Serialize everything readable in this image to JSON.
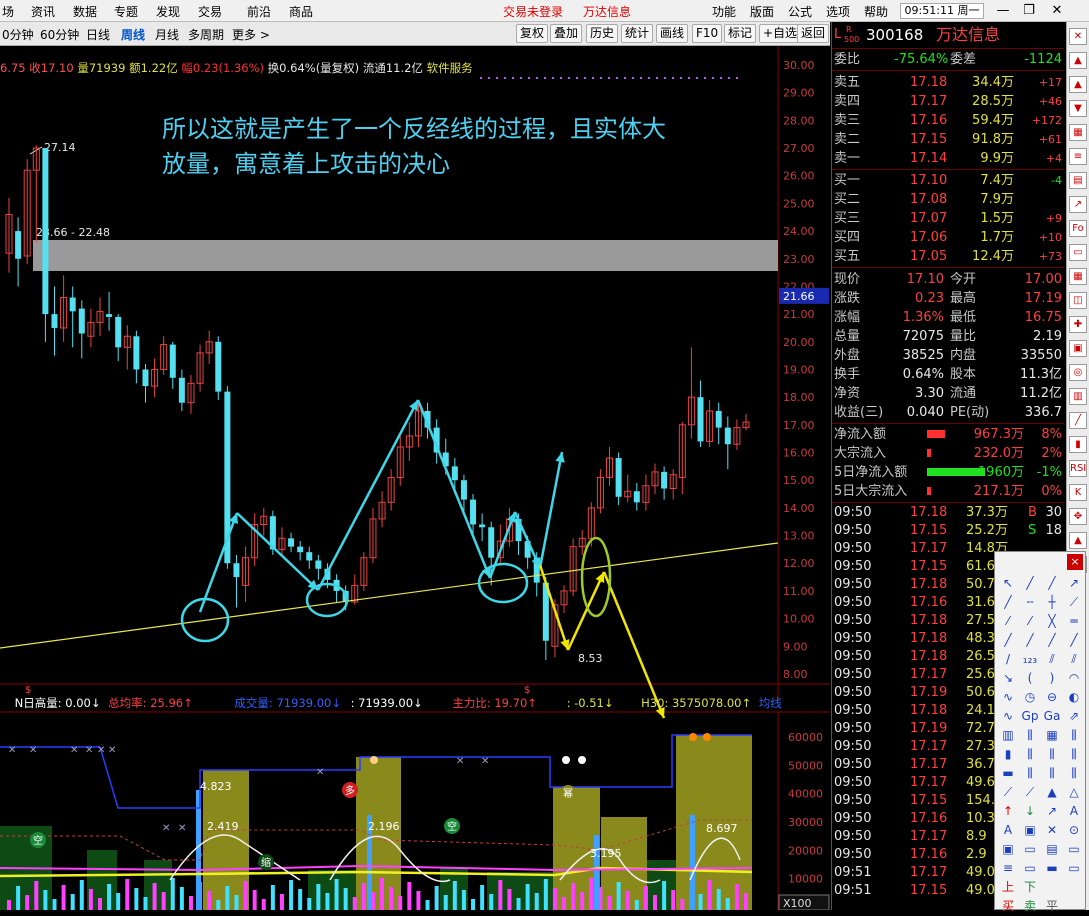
{
  "menu": {
    "left": [
      "场",
      "资讯",
      "数据",
      "专题",
      "发现",
      "交易",
      "前沿",
      "商品"
    ],
    "center": [
      "交易未登录",
      "万达信息"
    ],
    "right": [
      "功能",
      "版面",
      "公式",
      "选项",
      "帮助"
    ],
    "clock": "09:51:11",
    "weekday": "周一"
  },
  "periods": [
    "0分钟",
    "60分钟",
    "日线",
    "周线",
    "月线",
    "多周期",
    "更多"
  ],
  "period_selected": "周线",
  "tools": [
    "复权",
    "叠加",
    "历史",
    "统计",
    "画线",
    "F10",
    "标记",
    "+自选",
    "返回"
  ],
  "infobar": {
    "a": "6.75",
    "b": "收17.10",
    "c": "量71939",
    "d": "额1.22亿",
    "e": "幅0.23(1.36%)",
    "f": "换0.64%(量复权)",
    "g": "流通11.2亿",
    "h": "软件服务"
  },
  "annotation": {
    "line1": "所以这就是产生了一个反经线的过程，且实体大",
    "line2": "放量，寓意着上攻击的决心"
  },
  "chart": {
    "y_ticks": [
      "30.00",
      "29.00",
      "28.00",
      "27.00",
      "26.00",
      "25.00",
      "24.00",
      "23.00",
      "22.00",
      "21.00",
      "20.00",
      "19.00",
      "18.00",
      "17.00",
      "16.00",
      "15.00",
      "14.00",
      "13.00",
      "12.00",
      "11.00",
      "10.00",
      "9.00",
      "8.00"
    ],
    "current_price": "21.66",
    "high_label": "27.14",
    "range_label": "23.66 - 22.48",
    "low_label": "8.53",
    "vol_ticks": [
      "60000",
      "50000",
      "40000",
      "30000",
      "20000",
      "10000"
    ],
    "x100": "X100",
    "vol_marks": [
      {
        "text": "4.823"
      },
      {
        "text": "2.419"
      },
      {
        "text": "2.196"
      },
      {
        "text": "8.697"
      },
      {
        "text": "3.195"
      }
    ],
    "vol_tags": [
      "多",
      "空",
      "空",
      "幂",
      "缩"
    ]
  },
  "indicator": {
    "a": "N日高量: 0.00",
    "b": "总均率: 25.96",
    "c": "成交量: 71939.00",
    "d": ": 71939.00",
    "e": "主力比: 19.70",
    "f": ": -0.51",
    "g": "H30: 3575078.00",
    "h": "均线"
  },
  "quote": {
    "code": "300168",
    "name": "万达信息",
    "wb_label": "委比",
    "wb": "-75.64%",
    "wc_label": "委差",
    "wc": "-1124",
    "asks": [
      {
        "l": "卖五",
        "p": "17.18",
        "v": "34.4万",
        "c": "+17"
      },
      {
        "l": "卖四",
        "p": "17.17",
        "v": "28.5万",
        "c": "+46"
      },
      {
        "l": "卖三",
        "p": "17.16",
        "v": "59.4万",
        "c": "+172"
      },
      {
        "l": "卖二",
        "p": "17.15",
        "v": "91.8万",
        "c": "+61"
      },
      {
        "l": "卖一",
        "p": "17.14",
        "v": "9.9万",
        "c": "+4"
      }
    ],
    "bids": [
      {
        "l": "买一",
        "p": "17.10",
        "v": "7.4万",
        "c": "-4"
      },
      {
        "l": "买二",
        "p": "17.08",
        "v": "7.9万",
        "c": ""
      },
      {
        "l": "买三",
        "p": "17.07",
        "v": "1.5万",
        "c": "+9"
      },
      {
        "l": "买四",
        "p": "17.06",
        "v": "1.7万",
        "c": "+10"
      },
      {
        "l": "买五",
        "p": "17.05",
        "v": "12.4万",
        "c": "+73"
      }
    ],
    "stats": [
      {
        "l1": "现价",
        "v1": "17.10",
        "l2": "今开",
        "v2": "17.00"
      },
      {
        "l1": "涨跌",
        "v1": "0.23",
        "l2": "最高",
        "v2": "17.19"
      },
      {
        "l1": "涨幅",
        "v1": "1.36%",
        "l2": "最低",
        "v2": "16.75"
      },
      {
        "l1": "总量",
        "v1": "72075",
        "l2": "量比",
        "v2": "2.19"
      },
      {
        "l1": "外盘",
        "v1": "38525",
        "l2": "内盘",
        "v2": "33550"
      },
      {
        "l1": "换手",
        "v1": "0.64%",
        "l2": "股本",
        "v2": "11.3亿"
      },
      {
        "l1": "净资",
        "v1": "3.30",
        "l2": "流通",
        "v2": "11.2亿"
      },
      {
        "l1": "收益(三)",
        "v1": "0.040",
        "l2": "PE(动)",
        "v2": "336.7"
      }
    ],
    "flows": [
      {
        "l": "净流入额",
        "v": "967.3万",
        "p": "8%"
      },
      {
        "l": "大宗流入",
        "v": "232.0万",
        "p": "2%"
      },
      {
        "l": "5日净流入额",
        "v": "-1960万",
        "p": "-1%"
      },
      {
        "l": "5日大宗流入",
        "v": "217.1万",
        "p": "0%"
      }
    ],
    "ticks": [
      {
        "t": "09:50",
        "p": "17.18",
        "v": "37.3万",
        "s": "B",
        "n": "30"
      },
      {
        "t": "09:50",
        "p": "17.15",
        "v": "25.2万",
        "s": "S",
        "n": "18"
      },
      {
        "t": "09:50",
        "p": "17.17",
        "v": "14.8万",
        "s": "",
        "n": ""
      },
      {
        "t": "09:50",
        "p": "17.15",
        "v": "61.6",
        "s": "",
        "n": ""
      },
      {
        "t": "09:50",
        "p": "17.18",
        "v": "50.7",
        "s": "",
        "n": ""
      },
      {
        "t": "09:50",
        "p": "17.16",
        "v": "31.6",
        "s": "",
        "n": ""
      },
      {
        "t": "09:50",
        "p": "17.18",
        "v": "27.5",
        "s": "",
        "n": ""
      },
      {
        "t": "09:50",
        "p": "17.18",
        "v": "48.3",
        "s": "",
        "n": ""
      },
      {
        "t": "09:50",
        "p": "17.18",
        "v": "26.5",
        "s": "",
        "n": ""
      },
      {
        "t": "09:50",
        "p": "17.17",
        "v": "25.6",
        "s": "",
        "n": ""
      },
      {
        "t": "09:50",
        "p": "17.19",
        "v": "50.6",
        "s": "",
        "n": ""
      },
      {
        "t": "09:50",
        "p": "17.18",
        "v": "24.1",
        "s": "",
        "n": ""
      },
      {
        "t": "09:50",
        "p": "17.19",
        "v": "72.7",
        "s": "",
        "n": ""
      },
      {
        "t": "09:50",
        "p": "17.17",
        "v": "27.3",
        "s": "",
        "n": ""
      },
      {
        "t": "09:50",
        "p": "17.17",
        "v": "36.7",
        "s": "",
        "n": ""
      },
      {
        "t": "09:50",
        "p": "17.17",
        "v": "49.6",
        "s": "",
        "n": ""
      },
      {
        "t": "09:50",
        "p": "17.15",
        "v": "154.7",
        "s": "",
        "n": ""
      },
      {
        "t": "09:50",
        "p": "17.16",
        "v": "10.3",
        "s": "",
        "n": ""
      },
      {
        "t": "09:50",
        "p": "17.17",
        "v": "8.9",
        "s": "",
        "n": ""
      },
      {
        "t": "09:50",
        "p": "17.16",
        "v": "2.9",
        "s": "",
        "n": ""
      },
      {
        "t": "09:51",
        "p": "17.17",
        "v": "49.0",
        "s": "",
        "n": ""
      },
      {
        "t": "09:51",
        "p": "17.15",
        "v": "49.0",
        "s": "",
        "n": ""
      }
    ]
  },
  "palette": {
    "buy": "买",
    "sell": "卖",
    "flat": "平",
    "up": "上",
    "down": "下",
    "text_tool": "A",
    "close": "×"
  }
}
